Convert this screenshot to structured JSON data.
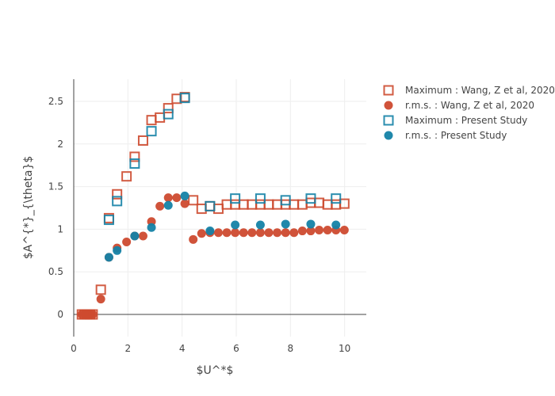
{
  "chart_data": {
    "type": "scatter",
    "title": "",
    "xlabel": "$U^*$",
    "ylabel": "$A^{*}_{\\theta}$",
    "xlim": [
      0,
      10.8
    ],
    "ylim": [
      -0.26,
      2.76
    ],
    "xticks": [
      0,
      2,
      4,
      6,
      8,
      10
    ],
    "xtick_labels": [
      "0",
      "2",
      "4",
      "6",
      "8",
      "10"
    ],
    "yticks": [
      0,
      0.5,
      1,
      1.5,
      2,
      2.5
    ],
    "ytick_labels": [
      "0",
      "0.5",
      "1",
      "1.5",
      "2",
      "2.5"
    ],
    "grid": true,
    "legend_position": "right",
    "series": [
      {
        "name": "Maximum : Wang, Z et al, 2020",
        "marker": "square-open",
        "color": "#cd4a2f",
        "x": [
          0.3,
          0.4,
          0.5,
          0.6,
          0.7,
          1.0,
          1.3,
          1.6,
          1.95,
          2.25,
          2.56,
          2.87,
          3.18,
          3.49,
          3.8,
          4.1,
          4.41,
          4.72,
          5.03,
          5.34,
          5.65,
          5.96,
          6.27,
          6.58,
          6.89,
          7.2,
          7.51,
          7.82,
          8.13,
          8.44,
          8.75,
          9.06,
          9.37,
          9.68,
          9.99
        ],
        "y": [
          0,
          0,
          0,
          0,
          0,
          0.29,
          1.13,
          1.41,
          1.62,
          1.85,
          2.04,
          2.28,
          2.31,
          2.42,
          2.53,
          2.55,
          1.34,
          1.24,
          1.27,
          1.24,
          1.29,
          1.29,
          1.29,
          1.29,
          1.29,
          1.29,
          1.29,
          1.29,
          1.29,
          1.29,
          1.31,
          1.31,
          1.29,
          1.29,
          1.3
        ]
      },
      {
        "name": "r.m.s. : Wang, Z et al, 2020",
        "marker": "circle",
        "color": "#cd4a2f",
        "x": [
          0.3,
          0.4,
          0.5,
          0.6,
          0.7,
          1.0,
          1.3,
          1.6,
          1.95,
          2.25,
          2.56,
          2.87,
          3.18,
          3.49,
          3.8,
          4.1,
          4.41,
          4.72,
          5.03,
          5.34,
          5.65,
          5.96,
          6.27,
          6.58,
          6.89,
          7.2,
          7.51,
          7.82,
          8.13,
          8.44,
          8.75,
          9.06,
          9.37,
          9.68,
          9.99
        ],
        "y": [
          0,
          0,
          0,
          0,
          0,
          0.18,
          0.67,
          0.78,
          0.85,
          0.92,
          0.92,
          1.09,
          1.27,
          1.37,
          1.37,
          1.3,
          0.88,
          0.95,
          0.96,
          0.96,
          0.96,
          0.96,
          0.96,
          0.96,
          0.96,
          0.96,
          0.96,
          0.96,
          0.96,
          0.98,
          0.98,
          0.99,
          0.99,
          0.99,
          0.99
        ]
      },
      {
        "name": "Maximum : Present Study",
        "marker": "square-open",
        "color": "#1482a6",
        "x": [
          1.3,
          1.6,
          2.25,
          2.87,
          3.49,
          4.1,
          5.03,
          5.96,
          6.89,
          7.82,
          8.75,
          9.68
        ],
        "y": [
          1.11,
          1.33,
          1.77,
          2.15,
          2.35,
          2.54,
          1.27,
          1.36,
          1.36,
          1.34,
          1.36,
          1.36
        ]
      },
      {
        "name": "r.m.s. : Present Study",
        "marker": "circle",
        "color": "#1482a6",
        "x": [
          1.3,
          1.6,
          2.25,
          2.87,
          3.49,
          4.1,
          5.03,
          5.96,
          6.89,
          7.82,
          8.75,
          9.68
        ],
        "y": [
          0.67,
          0.75,
          0.92,
          1.02,
          1.28,
          1.39,
          0.98,
          1.05,
          1.05,
          1.06,
          1.06,
          1.05
        ]
      }
    ]
  }
}
